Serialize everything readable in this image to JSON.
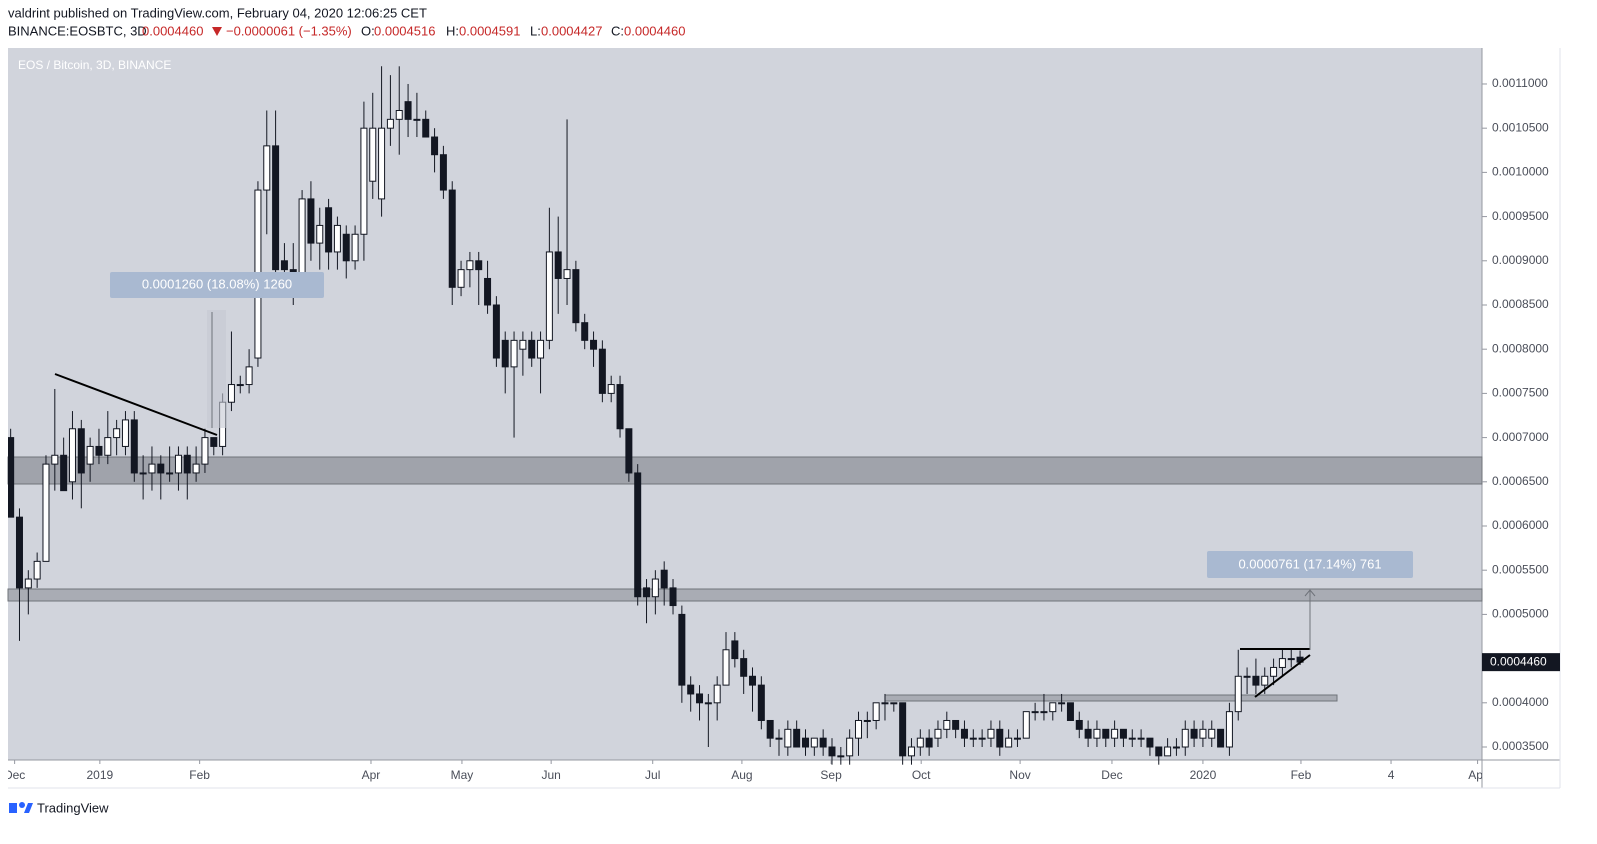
{
  "header": {
    "author_line": "valdrint published on TradingView.com, February 04, 2020 12:06:25 CET",
    "symbol": "BINANCE:EOSBTC, 3D",
    "last": "0.0004460",
    "change": "−0.0000061 (−1.35%)",
    "o_label": "O:",
    "o": "0.0004516",
    "h_label": "H:",
    "h": "0.0004591",
    "l_label": "L:",
    "l": "0.0004427",
    "c_label": "C:",
    "c": "0.0004460"
  },
  "chart_data": {
    "type": "candlestick",
    "title": "EOS / Bitcoin, 3D, BINANCE",
    "series": [
      {
        "name": "EOSBTC",
        "candles": [
          [
            0.0007,
            0.00071,
            0.00061,
            0.00061
          ],
          [
            0.00061,
            0.00062,
            0.00047,
            0.00053
          ],
          [
            0.00053,
            0.00055,
            0.0005,
            0.00054
          ],
          [
            0.00054,
            0.00057,
            0.00053,
            0.00056
          ],
          [
            0.00056,
            0.00068,
            0.00056,
            0.00067
          ],
          [
            0.00067,
            0.000755,
            0.00064,
            0.00068
          ],
          [
            0.00068,
            0.0007,
            0.00064,
            0.00064
          ],
          [
            0.00065,
            0.00073,
            0.00063,
            0.00071
          ],
          [
            0.00071,
            0.00072,
            0.00062,
            0.00066
          ],
          [
            0.00067,
            0.0007,
            0.00065,
            0.00069
          ],
          [
            0.00069,
            0.00071,
            0.00067,
            0.00068
          ],
          [
            0.00068,
            0.00073,
            0.00067,
            0.0007
          ],
          [
            0.0007,
            0.00072,
            0.00068,
            0.00071
          ],
          [
            0.00069,
            0.00073,
            0.00068,
            0.00072
          ],
          [
            0.00072,
            0.00073,
            0.00065,
            0.00066
          ],
          [
            0.00066,
            0.00068,
            0.00063,
            0.00066
          ],
          [
            0.00066,
            0.00069,
            0.00064,
            0.00067
          ],
          [
            0.00067,
            0.00068,
            0.00063,
            0.00066
          ],
          [
            0.00066,
            0.00069,
            0.00065,
            0.00066
          ],
          [
            0.00066,
            0.00069,
            0.00064,
            0.00068
          ],
          [
            0.00068,
            0.00069,
            0.00063,
            0.00066
          ],
          [
            0.00066,
            0.00069,
            0.00065,
            0.00067
          ],
          [
            0.00067,
            0.00071,
            0.00066,
            0.0007
          ],
          [
            0.0007,
            0.0007,
            0.00068,
            0.00069
          ],
          [
            0.00069,
            0.00075,
            0.00068,
            0.00074
          ],
          [
            0.00074,
            0.00082,
            0.00073,
            0.00076
          ],
          [
            0.00076,
            0.00077,
            0.00075,
            0.00076
          ],
          [
            0.00076,
            0.0008,
            0.00075,
            0.00078
          ],
          [
            0.00079,
            0.00099,
            0.00078,
            0.00098
          ],
          [
            0.00098,
            0.00107,
            0.00093,
            0.00103
          ],
          [
            0.00103,
            0.00107,
            0.00088,
            0.00089
          ],
          [
            0.0009,
            0.00092,
            0.00088,
            0.00089
          ],
          [
            0.00089,
            0.00092,
            0.00085,
            0.00086
          ],
          [
            0.00087,
            0.00098,
            0.00086,
            0.00097
          ],
          [
            0.00097,
            0.00099,
            0.0009,
            0.00092
          ],
          [
            0.00092,
            0.00096,
            0.00089,
            0.00094
          ],
          [
            0.00096,
            0.00097,
            0.00089,
            0.00091
          ],
          [
            0.00091,
            0.00095,
            0.00089,
            0.00094
          ],
          [
            0.00093,
            0.00094,
            0.00088,
            0.0009
          ],
          [
            0.0009,
            0.00094,
            0.00089,
            0.00093
          ],
          [
            0.00093,
            0.00108,
            0.0009,
            0.00105
          ],
          [
            0.00099,
            0.00109,
            0.00097,
            0.00105
          ],
          [
            0.00097,
            0.00112,
            0.00095,
            0.00105
          ],
          [
            0.00105,
            0.00111,
            0.00103,
            0.00106
          ],
          [
            0.00106,
            0.00112,
            0.00102,
            0.00107
          ],
          [
            0.00108,
            0.0011,
            0.00104,
            0.00106
          ],
          [
            0.00106,
            0.00109,
            0.00104,
            0.00106
          ],
          [
            0.00106,
            0.00107,
            0.00104,
            0.00104
          ],
          [
            0.00104,
            0.00105,
            0.001,
            0.00102
          ],
          [
            0.00102,
            0.00103,
            0.00097,
            0.00098
          ],
          [
            0.00098,
            0.00099,
            0.00085,
            0.00087
          ],
          [
            0.00087,
            0.0009,
            0.00086,
            0.00089
          ],
          [
            0.00089,
            0.00091,
            0.00087,
            0.0009
          ],
          [
            0.0009,
            0.00091,
            0.00085,
            0.00089
          ],
          [
            0.00088,
            0.0009,
            0.00084,
            0.00085
          ],
          [
            0.00085,
            0.00086,
            0.00078,
            0.00079
          ],
          [
            0.00081,
            0.00082,
            0.00075,
            0.00078
          ],
          [
            0.00078,
            0.00082,
            0.0007,
            0.00081
          ],
          [
            0.0008,
            0.00082,
            0.00077,
            0.00081
          ],
          [
            0.00081,
            0.00082,
            0.00078,
            0.00079
          ],
          [
            0.00079,
            0.00082,
            0.00075,
            0.00081
          ],
          [
            0.00081,
            0.00096,
            0.0008,
            0.00091
          ],
          [
            0.00091,
            0.00095,
            0.00084,
            0.00088
          ],
          [
            0.00088,
            0.00106,
            0.00085,
            0.00089
          ],
          [
            0.00089,
            0.0009,
            0.00082,
            0.00083
          ],
          [
            0.00083,
            0.00084,
            0.0008,
            0.00081
          ],
          [
            0.00081,
            0.00082,
            0.00078,
            0.0008
          ],
          [
            0.0008,
            0.00081,
            0.00074,
            0.00075
          ],
          [
            0.00075,
            0.00077,
            0.00074,
            0.00076
          ],
          [
            0.00076,
            0.00077,
            0.0007,
            0.00071
          ],
          [
            0.00071,
            0.00071,
            0.00065,
            0.00066
          ],
          [
            0.00066,
            0.00067,
            0.00051,
            0.00052
          ],
          [
            0.00053,
            0.00054,
            0.00049,
            0.00052
          ],
          [
            0.00052,
            0.00055,
            0.0005,
            0.00054
          ],
          [
            0.00055,
            0.00056,
            0.00051,
            0.00053
          ],
          [
            0.00053,
            0.00054,
            0.0005,
            0.00051
          ],
          [
            0.0005,
            0.00051,
            0.0004,
            0.00042
          ],
          [
            0.00042,
            0.00043,
            0.00039,
            0.00041
          ],
          [
            0.00041,
            0.00042,
            0.00038,
            0.0004
          ],
          [
            0.0004,
            0.00041,
            0.00035,
            0.0004
          ],
          [
            0.0004,
            0.00043,
            0.00038,
            0.00042
          ],
          [
            0.00042,
            0.00048,
            0.00042,
            0.00046
          ],
          [
            0.00047,
            0.00048,
            0.00044,
            0.00045
          ],
          [
            0.00045,
            0.00046,
            0.00041,
            0.00043
          ],
          [
            0.00043,
            0.00044,
            0.00039,
            0.00042
          ],
          [
            0.00042,
            0.00043,
            0.00037,
            0.00038
          ],
          [
            0.00038,
            0.00038,
            0.00035,
            0.00036
          ],
          [
            0.00036,
            0.00037,
            0.00034,
            0.00036
          ],
          [
            0.00035,
            0.00038,
            0.00034,
            0.00037
          ],
          [
            0.00037,
            0.00038,
            0.00035,
            0.00035
          ],
          [
            0.00036,
            0.00037,
            0.00034,
            0.00035
          ],
          [
            0.00035,
            0.00036,
            0.00034,
            0.00036
          ],
          [
            0.00036,
            0.00037,
            0.00034,
            0.00035
          ],
          [
            0.00035,
            0.00036,
            0.00033,
            0.00034
          ],
          [
            0.00034,
            0.00035,
            0.00033,
            0.00034
          ],
          [
            0.00034,
            0.00037,
            0.00033,
            0.00036
          ],
          [
            0.00036,
            0.00039,
            0.00034,
            0.00038
          ],
          [
            0.00038,
            0.00039,
            0.00036,
            0.00038
          ],
          [
            0.00038,
            0.0004,
            0.00037,
            0.0004
          ],
          [
            0.0004,
            0.00041,
            0.00038,
            0.0004
          ],
          [
            0.0004,
            0.0004,
            0.00039,
            0.0004
          ],
          [
            0.0004,
            0.0004,
            0.00033,
            0.00034
          ],
          [
            0.00034,
            0.00036,
            0.00033,
            0.00035
          ],
          [
            0.00035,
            0.00037,
            0.00034,
            0.00036
          ],
          [
            0.00036,
            0.00037,
            0.00034,
            0.00035
          ],
          [
            0.00036,
            0.00038,
            0.00035,
            0.00037
          ],
          [
            0.00037,
            0.00039,
            0.00036,
            0.00038
          ],
          [
            0.00038,
            0.00038,
            0.00036,
            0.00037
          ],
          [
            0.00037,
            0.00038,
            0.00035,
            0.00036
          ],
          [
            0.00036,
            0.00037,
            0.00035,
            0.00036
          ],
          [
            0.00036,
            0.00037,
            0.00035,
            0.00036
          ],
          [
            0.00036,
            0.00038,
            0.00035,
            0.00037
          ],
          [
            0.00037,
            0.00038,
            0.00034,
            0.00035
          ],
          [
            0.00035,
            0.00037,
            0.00035,
            0.00036
          ],
          [
            0.00036,
            0.00037,
            0.00035,
            0.00036
          ],
          [
            0.00036,
            0.00039,
            0.00036,
            0.00039
          ],
          [
            0.00039,
            0.0004,
            0.00038,
            0.00039
          ],
          [
            0.00039,
            0.00041,
            0.00038,
            0.00039
          ],
          [
            0.00039,
            0.0004,
            0.00038,
            0.0004
          ],
          [
            0.0004,
            0.00041,
            0.00039,
            0.0004
          ],
          [
            0.0004,
            0.0004,
            0.00038,
            0.00038
          ],
          [
            0.00038,
            0.00039,
            0.00036,
            0.00037
          ],
          [
            0.00037,
            0.00038,
            0.00035,
            0.00036
          ],
          [
            0.00036,
            0.00038,
            0.00035,
            0.00037
          ],
          [
            0.00037,
            0.00037,
            0.00035,
            0.00036
          ],
          [
            0.00036,
            0.00038,
            0.00035,
            0.00037
          ],
          [
            0.00037,
            0.00037,
            0.00035,
            0.00036
          ],
          [
            0.00036,
            0.00037,
            0.00035,
            0.00036
          ],
          [
            0.00036,
            0.00037,
            0.00035,
            0.00036
          ],
          [
            0.00036,
            0.00036,
            0.00034,
            0.00035
          ],
          [
            0.00035,
            0.00035,
            0.00033,
            0.00034
          ],
          [
            0.00034,
            0.00036,
            0.00034,
            0.00035
          ],
          [
            0.00035,
            0.00036,
            0.00034,
            0.00035
          ],
          [
            0.00035,
            0.00038,
            0.00034,
            0.00037
          ],
          [
            0.00037,
            0.00038,
            0.00035,
            0.00036
          ],
          [
            0.00036,
            0.00038,
            0.00035,
            0.00037
          ],
          [
            0.00036,
            0.00038,
            0.00035,
            0.00037
          ],
          [
            0.00037,
            0.00037,
            0.00035,
            0.00035
          ],
          [
            0.00035,
            0.0004,
            0.00034,
            0.00039
          ],
          [
            0.00039,
            0.00046,
            0.00038,
            0.00043
          ],
          [
            0.00043,
            0.00044,
            0.00041,
            0.00043
          ],
          [
            0.00043,
            0.00045,
            0.00041,
            0.00042
          ],
          [
            0.00042,
            0.00044,
            0.00041,
            0.00043
          ],
          [
            0.00043,
            0.00045,
            0.00042,
            0.00044
          ],
          [
            0.00044,
            0.00046,
            0.00043,
            0.00045
          ],
          [
            0.00045,
            0.00046,
            0.00044,
            0.00045
          ],
          [
            0.0004516,
            0.0004591,
            0.0004427,
            0.000446
          ]
        ],
        "up_color": "#ffffff",
        "down_color": "#131722"
      }
    ],
    "xlim": [
      -0.3,
      166.6
    ],
    "xticks": [
      {
        "value": 0.45,
        "label": "Dec"
      },
      {
        "value": 10.1,
        "label": "2019"
      },
      {
        "value": 21.4,
        "label": "Feb"
      },
      {
        "value": 40.8,
        "label": "Apr"
      },
      {
        "value": 51.1,
        "label": "May"
      },
      {
        "value": 61.2,
        "label": "Jun"
      },
      {
        "value": 72.7,
        "label": "Jul"
      },
      {
        "value": 82.8,
        "label": "Aug"
      },
      {
        "value": 92.9,
        "label": "Sep"
      },
      {
        "value": 103.1,
        "label": "Oct"
      },
      {
        "value": 114.3,
        "label": "Nov"
      },
      {
        "value": 124.7,
        "label": "Dec"
      },
      {
        "value": 135.0,
        "label": "2020"
      },
      {
        "value": 146.1,
        "label": "Feb"
      },
      {
        "value": 156.3,
        "label": "4"
      },
      {
        "value": 166.1,
        "label": "Apr"
      }
    ],
    "ylim": [
      0.0003353,
      0.0011407
    ],
    "yticks": [
      {
        "value": 0.00035,
        "label": "0.0003500"
      },
      {
        "value": 0.0004,
        "label": "0.0004000"
      },
      {
        "value": 0.00045,
        "label": "0.0004500"
      },
      {
        "value": 0.0005,
        "label": "0.0005000"
      },
      {
        "value": 0.00055,
        "label": "0.0005500"
      },
      {
        "value": 0.0006,
        "label": "0.0006000"
      },
      {
        "value": 0.00065,
        "label": "0.0006500"
      },
      {
        "value": 0.0007,
        "label": "0.0007000"
      },
      {
        "value": 0.00075,
        "label": "0.0007500"
      },
      {
        "value": 0.0008,
        "label": "0.0008000"
      },
      {
        "value": 0.00085,
        "label": "0.0008500"
      },
      {
        "value": 0.0009,
        "label": "0.0009000"
      },
      {
        "value": 0.00095,
        "label": "0.0009500"
      },
      {
        "value": 0.001,
        "label": "0.0010000"
      },
      {
        "value": 0.00105,
        "label": "0.0010500"
      },
      {
        "value": 0.0011,
        "label": "0.0011000"
      }
    ],
    "last_price": 0.000446,
    "last_price_label": "0.0004460",
    "measurements": [
      "0.0001260 (18.08%) 1260",
      "0.0000761 (17.14%) 761"
    ]
  },
  "footer": {
    "brand": "TradingView"
  }
}
